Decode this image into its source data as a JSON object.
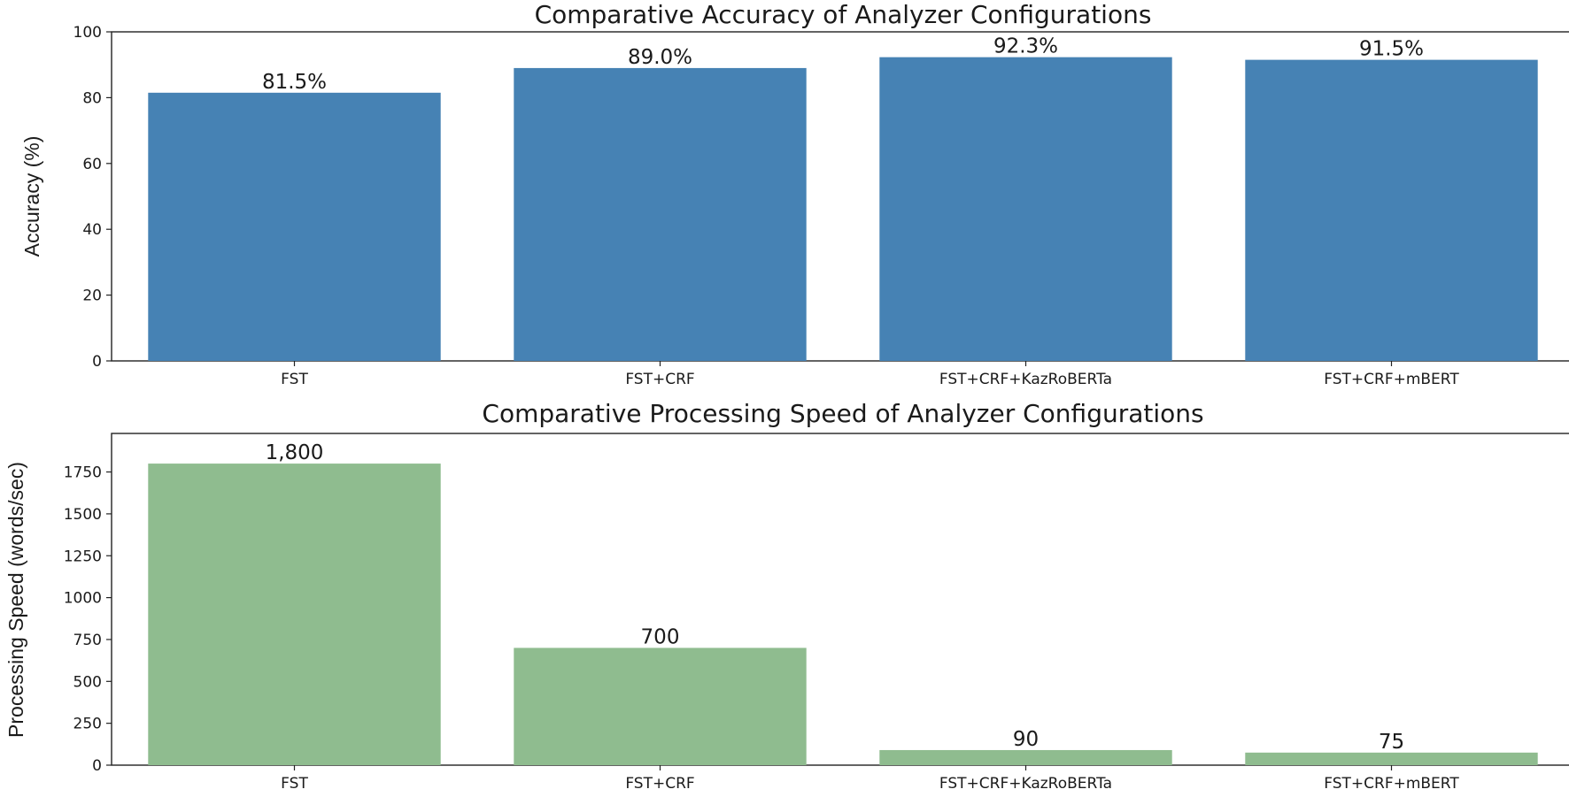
{
  "colors": {
    "accuracy_bar": "#4682b4",
    "speed_bar": "#8fbc8f",
    "axis": "#222222"
  },
  "chart_data": [
    {
      "type": "bar",
      "title": "Comparative Accuracy of Analyzer Configurations",
      "xlabel": "",
      "ylabel": "Accuracy (%)",
      "categories": [
        "FST",
        "FST+CRF",
        "FST+CRF+KazRoBERTa",
        "FST+CRF+mBERT"
      ],
      "values": [
        81.5,
        89.0,
        92.3,
        91.5
      ],
      "data_labels": [
        "81.5%",
        "89.0%",
        "92.3%",
        "91.5%"
      ],
      "ylim": [
        0,
        100
      ],
      "yticks": [
        0,
        20,
        40,
        60,
        80,
        100
      ],
      "ytick_labels": [
        "0",
        "20",
        "40",
        "60",
        "80",
        "100"
      ],
      "grid": false,
      "color": "#4682b4"
    },
    {
      "type": "bar",
      "title": "Comparative Processing Speed of Analyzer Configurations",
      "xlabel": "",
      "ylabel": "Processing Speed (words/sec)",
      "categories": [
        "FST",
        "FST+CRF",
        "FST+CRF+KazRoBERTa",
        "FST+CRF+mBERT"
      ],
      "values": [
        1800,
        700,
        90,
        75
      ],
      "data_labels": [
        "1,800",
        "700",
        "90",
        "75"
      ],
      "ylim": [
        0,
        1980
      ],
      "yticks": [
        0,
        250,
        500,
        750,
        1000,
        1250,
        1500,
        1750
      ],
      "ytick_labels": [
        "0",
        "250",
        "500",
        "750",
        "1000",
        "1250",
        "1500",
        "1750"
      ],
      "grid": false,
      "color": "#8fbc8f"
    }
  ]
}
